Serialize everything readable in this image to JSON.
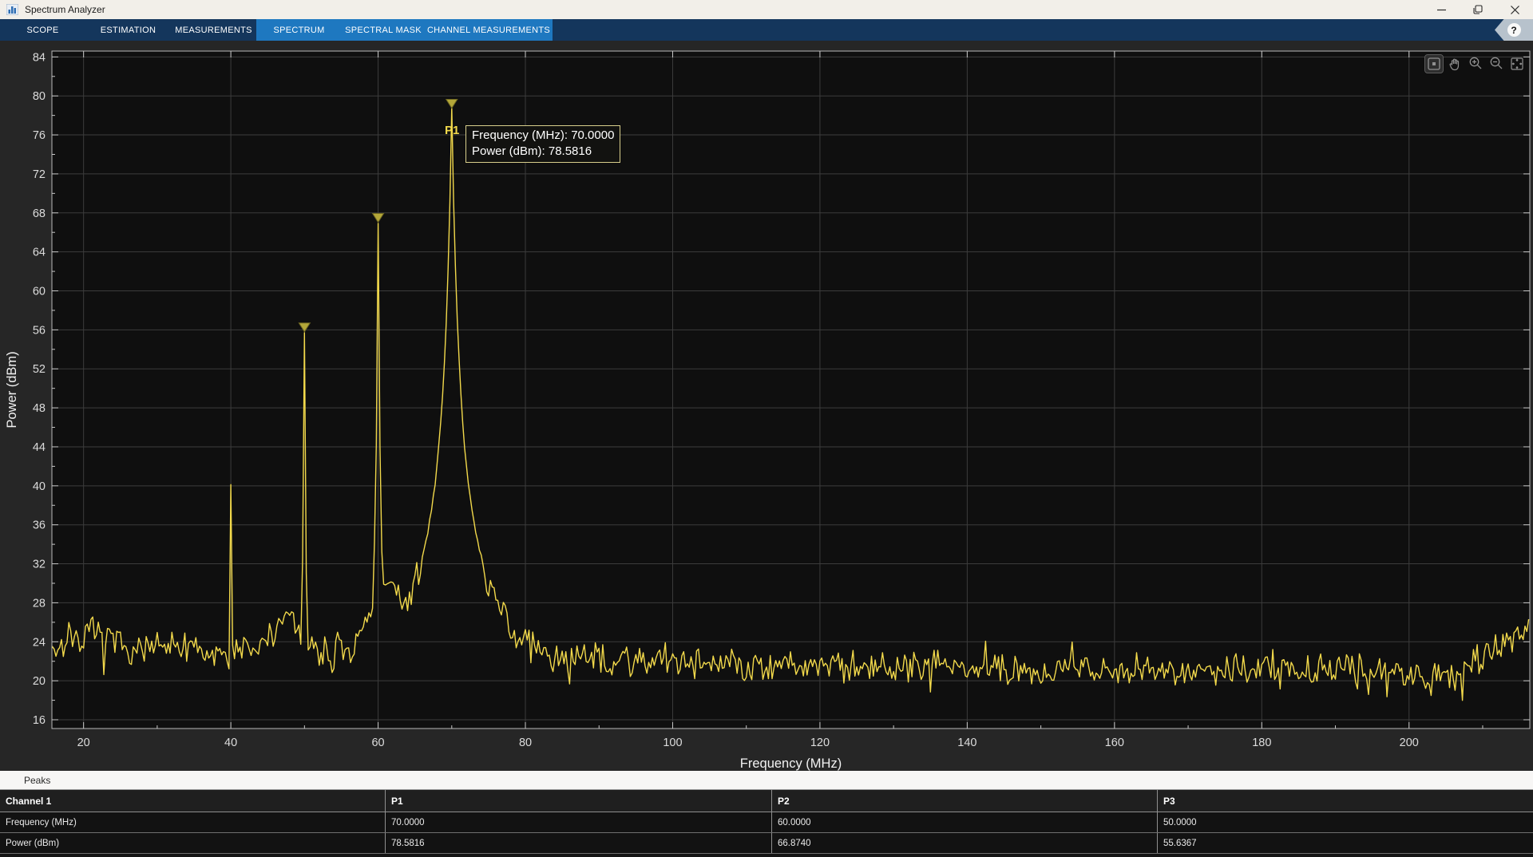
{
  "window": {
    "title": "Spectrum Analyzer",
    "controls": {
      "minimize": "minimize",
      "restore": "restore",
      "close": "close"
    }
  },
  "toolbar": {
    "tabs": [
      {
        "label": "SCOPE"
      },
      {
        "label": "ESTIMATION"
      },
      {
        "label": "MEASUREMENTS"
      },
      {
        "label": "SPECTRUM"
      },
      {
        "label": "SPECTRAL MASK"
      },
      {
        "label": "CHANNEL MEASUREMENTS"
      }
    ],
    "bar_color": "#14365c",
    "contextual_group_color": "#1e78c0",
    "help_label": "?"
  },
  "plot_toolbar": {
    "icons": [
      "restore-view-icon",
      "pan-icon",
      "zoom-in-icon",
      "zoom-out-icon",
      "fit-to-view-icon"
    ]
  },
  "cursor": {
    "label": "P1",
    "line1": "Frequency (MHz): 70.0000",
    "line2": "Power (dBm): 78.5816"
  },
  "chart_data": {
    "type": "line",
    "title": "",
    "xlabel": "Frequency (MHz)",
    "ylabel": "Power (dBm)",
    "xlim": [
      15.7,
      216.4
    ],
    "ylim": [
      15.1,
      84.6
    ],
    "x_major_ticks": [
      20,
      40,
      60,
      80,
      100,
      120,
      140,
      160,
      180,
      200
    ],
    "x_minor_ticks": [
      30,
      50,
      70,
      90,
      110,
      130,
      150,
      170,
      190,
      210
    ],
    "y_major_ticks": [
      16,
      20,
      24,
      28,
      32,
      36,
      40,
      44,
      48,
      52,
      56,
      60,
      64,
      68,
      72,
      76,
      80,
      84
    ],
    "y_minor_ticks": [
      18,
      22,
      26,
      30,
      34,
      38,
      42,
      46,
      50,
      54,
      58,
      62,
      66,
      70,
      74,
      78,
      82
    ],
    "grid": true,
    "legend": "none",
    "trace_color": "#f2d94b",
    "marker_fill": "#b4a739",
    "marker_stroke": "#6e6722",
    "background": "#0f0f0f",
    "grid_color": "#3c3c3c",
    "frame_color": "#b8b8b8",
    "tick_label_color": "#dcdcdc",
    "axis_label_color": "#f2f2f2",
    "peaks": [
      {
        "label": "P1",
        "frequency_mhz": 70.0,
        "power_dbm": 78.5816,
        "marked": true,
        "width": 1.4,
        "skirt": 62
      },
      {
        "label": "P2",
        "frequency_mhz": 60.0,
        "power_dbm": 66.874,
        "marked": true,
        "width": 0.45,
        "skirt": 64
      },
      {
        "label": "P3",
        "frequency_mhz": 50.0,
        "power_dbm": 55.6367,
        "marked": true,
        "width": 0.4,
        "skirt": 60
      },
      {
        "label": "",
        "frequency_mhz": 40.0,
        "power_dbm": 40.0,
        "marked": false,
        "width": 0.3,
        "skirt": 55
      }
    ],
    "noise_floor_dbm": {
      "left": 23.6,
      "mid": 21.8,
      "right": 20.9,
      "right_edge_rise_start": 206,
      "right_edge_rise_per_mhz": 0.45
    },
    "humps": [
      {
        "center": 61.5,
        "sigma": 3.2,
        "height": 7.5
      },
      {
        "center": 47.5,
        "sigma": 2.5,
        "height": 3.5
      },
      {
        "center": 21.0,
        "sigma": 3.0,
        "height": 1.2
      }
    ],
    "sample_step_mhz": 0.25,
    "seed": 7
  },
  "peaks_panel": {
    "title": "Peaks",
    "table": {
      "headers": [
        "Channel 1",
        "P1",
        "P2",
        "P3"
      ],
      "rows": [
        {
          "label": "Frequency (MHz)",
          "values": [
            "70.0000",
            "60.0000",
            "50.0000"
          ]
        },
        {
          "label": "Power (dBm)",
          "values": [
            "78.5816",
            "66.8740",
            "55.6367"
          ]
        }
      ]
    }
  }
}
